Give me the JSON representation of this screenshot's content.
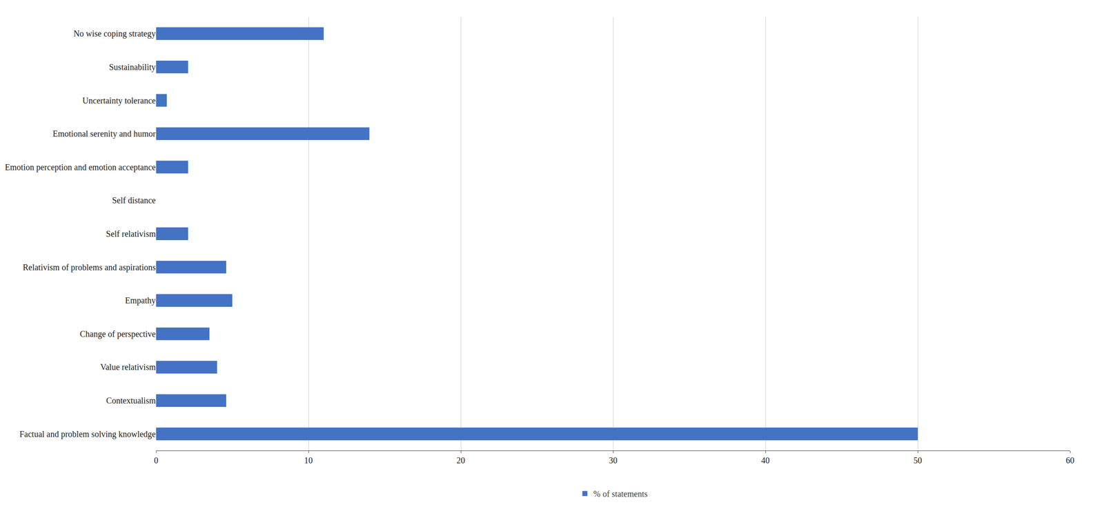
{
  "chart_data": {
    "type": "bar",
    "orientation": "horizontal",
    "categories": [
      "Factual and problem solving knowledge",
      "Contextualism",
      "Value relativism",
      "Change of perspective",
      "Empathy",
      "Relativism of problems and aspirations",
      "Self relativism",
      "Self distance",
      "Emotion perception and emotion acceptance",
      "Emotional serenity and humor",
      "Uncertainty tolerance",
      "Sustainability",
      "No wise coping strategy"
    ],
    "series": [
      {
        "name": "% of statements",
        "color": "#4472c4",
        "values": [
          50.0,
          4.6,
          4.0,
          3.5,
          5.0,
          4.6,
          2.1,
          0.0,
          2.1,
          14.0,
          0.7,
          2.1,
          11.0
        ]
      }
    ],
    "xlim": [
      0,
      60
    ],
    "xticks": [
      0,
      10,
      20,
      30,
      40,
      50,
      60
    ],
    "grid": true,
    "legend": "bottom"
  }
}
